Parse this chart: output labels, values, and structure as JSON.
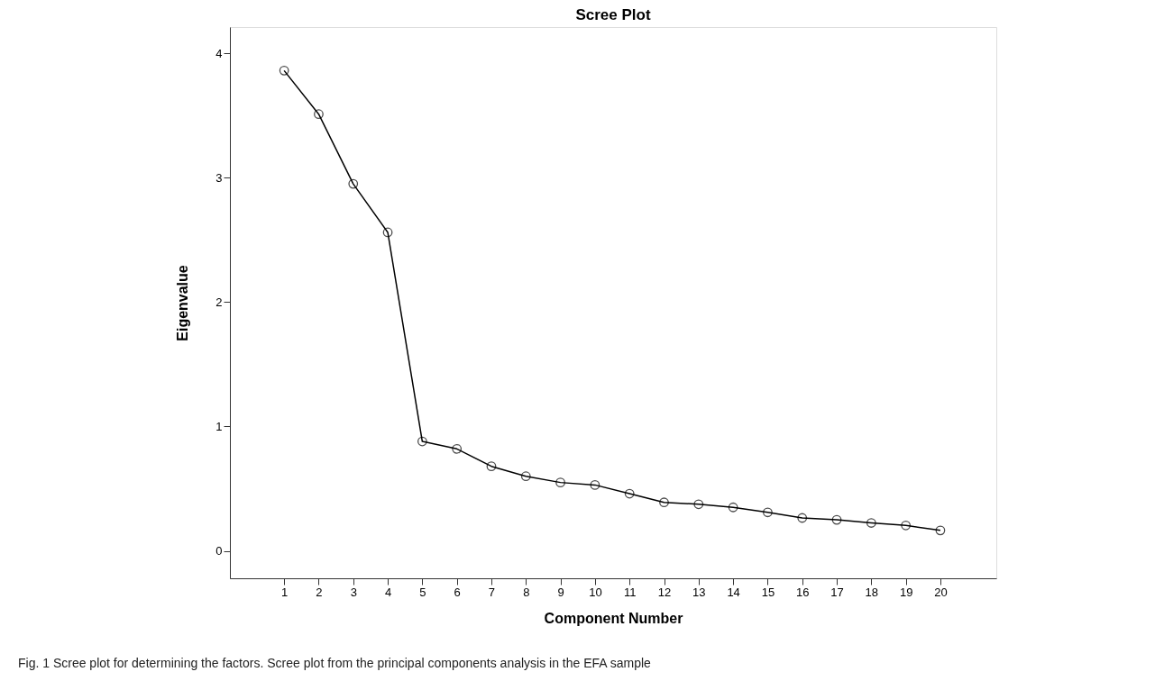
{
  "chart_data": {
    "type": "line",
    "title": "Scree Plot",
    "xlabel": "Component Number",
    "ylabel": "Eigenvalue",
    "x": [
      1,
      2,
      3,
      4,
      5,
      6,
      7,
      8,
      9,
      10,
      11,
      12,
      13,
      14,
      15,
      16,
      17,
      18,
      19,
      20
    ],
    "series": [
      {
        "color": "#000000",
        "values": [
          3.86,
          3.51,
          2.95,
          2.56,
          0.88,
          0.82,
          0.68,
          0.6,
          0.55,
          0.53,
          0.46,
          0.39,
          0.375,
          0.35,
          0.31,
          0.265,
          0.25,
          0.225,
          0.205,
          0.165
        ]
      }
    ],
    "xlim": [
      -0.57,
      21.62
    ],
    "xticks": [
      1,
      2,
      3,
      4,
      5,
      6,
      7,
      8,
      9,
      10,
      11,
      12,
      13,
      14,
      15,
      16,
      17,
      18,
      19,
      20
    ],
    "ylim": [
      -0.22,
      4.21
    ],
    "yticks": [
      0,
      1,
      2,
      3,
      4
    ],
    "marker": "circle",
    "line_style": "solid",
    "grid": false,
    "legend": false,
    "annotations": [
      "Fig. 1 Scree plot for determining the factors. Scree plot from the principal components analysis in the EFA sample"
    ]
  }
}
